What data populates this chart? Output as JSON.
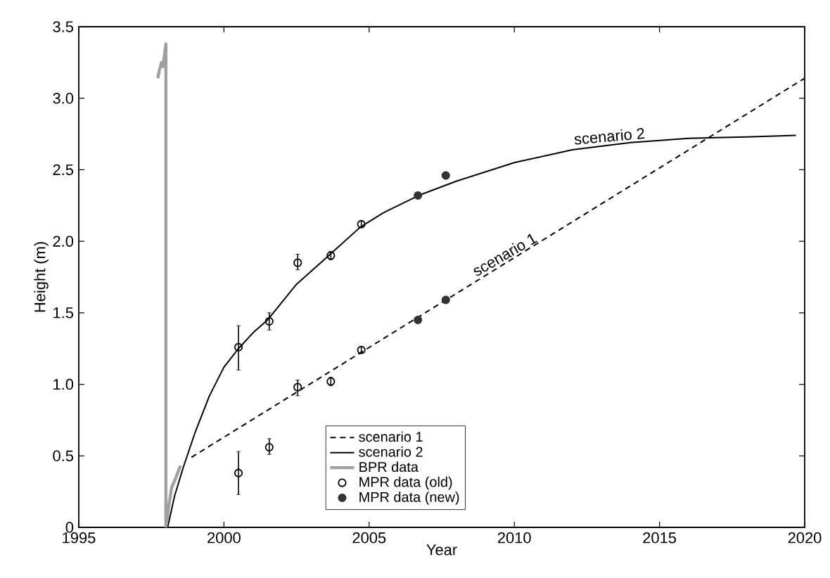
{
  "chart_data": {
    "type": "line",
    "xlabel": "Year",
    "ylabel": "Height (m)",
    "xlim": [
      1995,
      2020
    ],
    "ylim": [
      0,
      3.5
    ],
    "xticks": [
      1995,
      2000,
      2005,
      2010,
      2015,
      2020
    ],
    "yticks": [
      0,
      {
        "value": 0.5,
        "label": "0.5"
      },
      {
        "value": 1,
        "label": "1.0"
      },
      {
        "value": 1.5,
        "label": "1.5"
      },
      {
        "value": 2,
        "label": "2.0"
      },
      {
        "value": 2.5,
        "label": "2.5"
      },
      {
        "value": 3,
        "label": "3.0"
      },
      {
        "value": 3.5,
        "label": "3.5"
      }
    ],
    "grid": false,
    "legend": "bottom",
    "series": [
      {
        "name": "scenario 1",
        "color": "#000000",
        "line_style": "dashed",
        "marker": "none",
        "x": [
          1998.88,
          2020
        ],
        "values": [
          0.49,
          3.14
        ]
      },
      {
        "name": "scenario 2",
        "color": "#000000",
        "line_style": "solid",
        "marker": "none",
        "x": [
          1998.06,
          1998.3,
          1998.6,
          1999,
          1999.5,
          2000,
          2000.5,
          2001,
          2001.5,
          2002.5,
          2003.5,
          2004.7,
          2005.5,
          2006.7,
          2008,
          2010,
          2012,
          2014,
          2016,
          2018,
          2019.7
        ],
        "values": [
          0,
          0.22,
          0.42,
          0.66,
          0.92,
          1.12,
          1.25,
          1.36,
          1.45,
          1.7,
          1.88,
          2.1,
          2.2,
          2.32,
          2.42,
          2.55,
          2.64,
          2.69,
          2.72,
          2.73,
          2.74
        ]
      },
      {
        "name": "BPR data",
        "color": "#a0a0a0",
        "line_style": "solid",
        "marker": "none",
        "x": [
          1997.72,
          1997.78,
          1997.85,
          1997.9,
          1997.95,
          1998.0,
          1998.0,
          1998.1,
          1998.2,
          1998.35,
          1998.5
        ],
        "values": [
          3.14,
          3.2,
          3.25,
          3.22,
          3.3,
          3.38,
          0,
          0.15,
          0.28,
          0.35,
          0.43
        ]
      },
      {
        "name": "MPR data (old)",
        "type": "scatter",
        "color": "#000000",
        "marker": "circle",
        "x": [
          2000.5,
          2000.5,
          2001.56,
          2001.56,
          2002.54,
          2002.54,
          2003.68,
          2003.68,
          2004.73,
          2004.73
        ],
        "values": [
          1.26,
          0.38,
          1.44,
          0.56,
          1.85,
          0.98,
          1.9,
          1.02,
          2.12,
          1.24
        ],
        "errors": [
          [
            1.1,
            1.41
          ],
          [
            0.23,
            0.53
          ],
          [
            1.38,
            1.5
          ],
          [
            0.51,
            0.62
          ],
          [
            1.8,
            1.91
          ],
          [
            0.92,
            1.03
          ],
          [
            1.87,
            1.93
          ],
          [
            0.99,
            1.05
          ],
          [
            2.1,
            2.14
          ],
          [
            1.22,
            1.26
          ]
        ]
      },
      {
        "name": "MPR data (new)",
        "type": "scatter",
        "color": "#333333",
        "marker": "circle",
        "x": [
          2006.68,
          2006.68,
          2007.64,
          2007.64
        ],
        "values": [
          2.32,
          1.45,
          2.46,
          1.59
        ]
      }
    ],
    "annotations": [
      {
        "text": "scenario 2",
        "x": 2013.3,
        "y": 2.68
      },
      {
        "text": "scenario 1",
        "x": 2009.8,
        "y": 1.86
      }
    ]
  }
}
